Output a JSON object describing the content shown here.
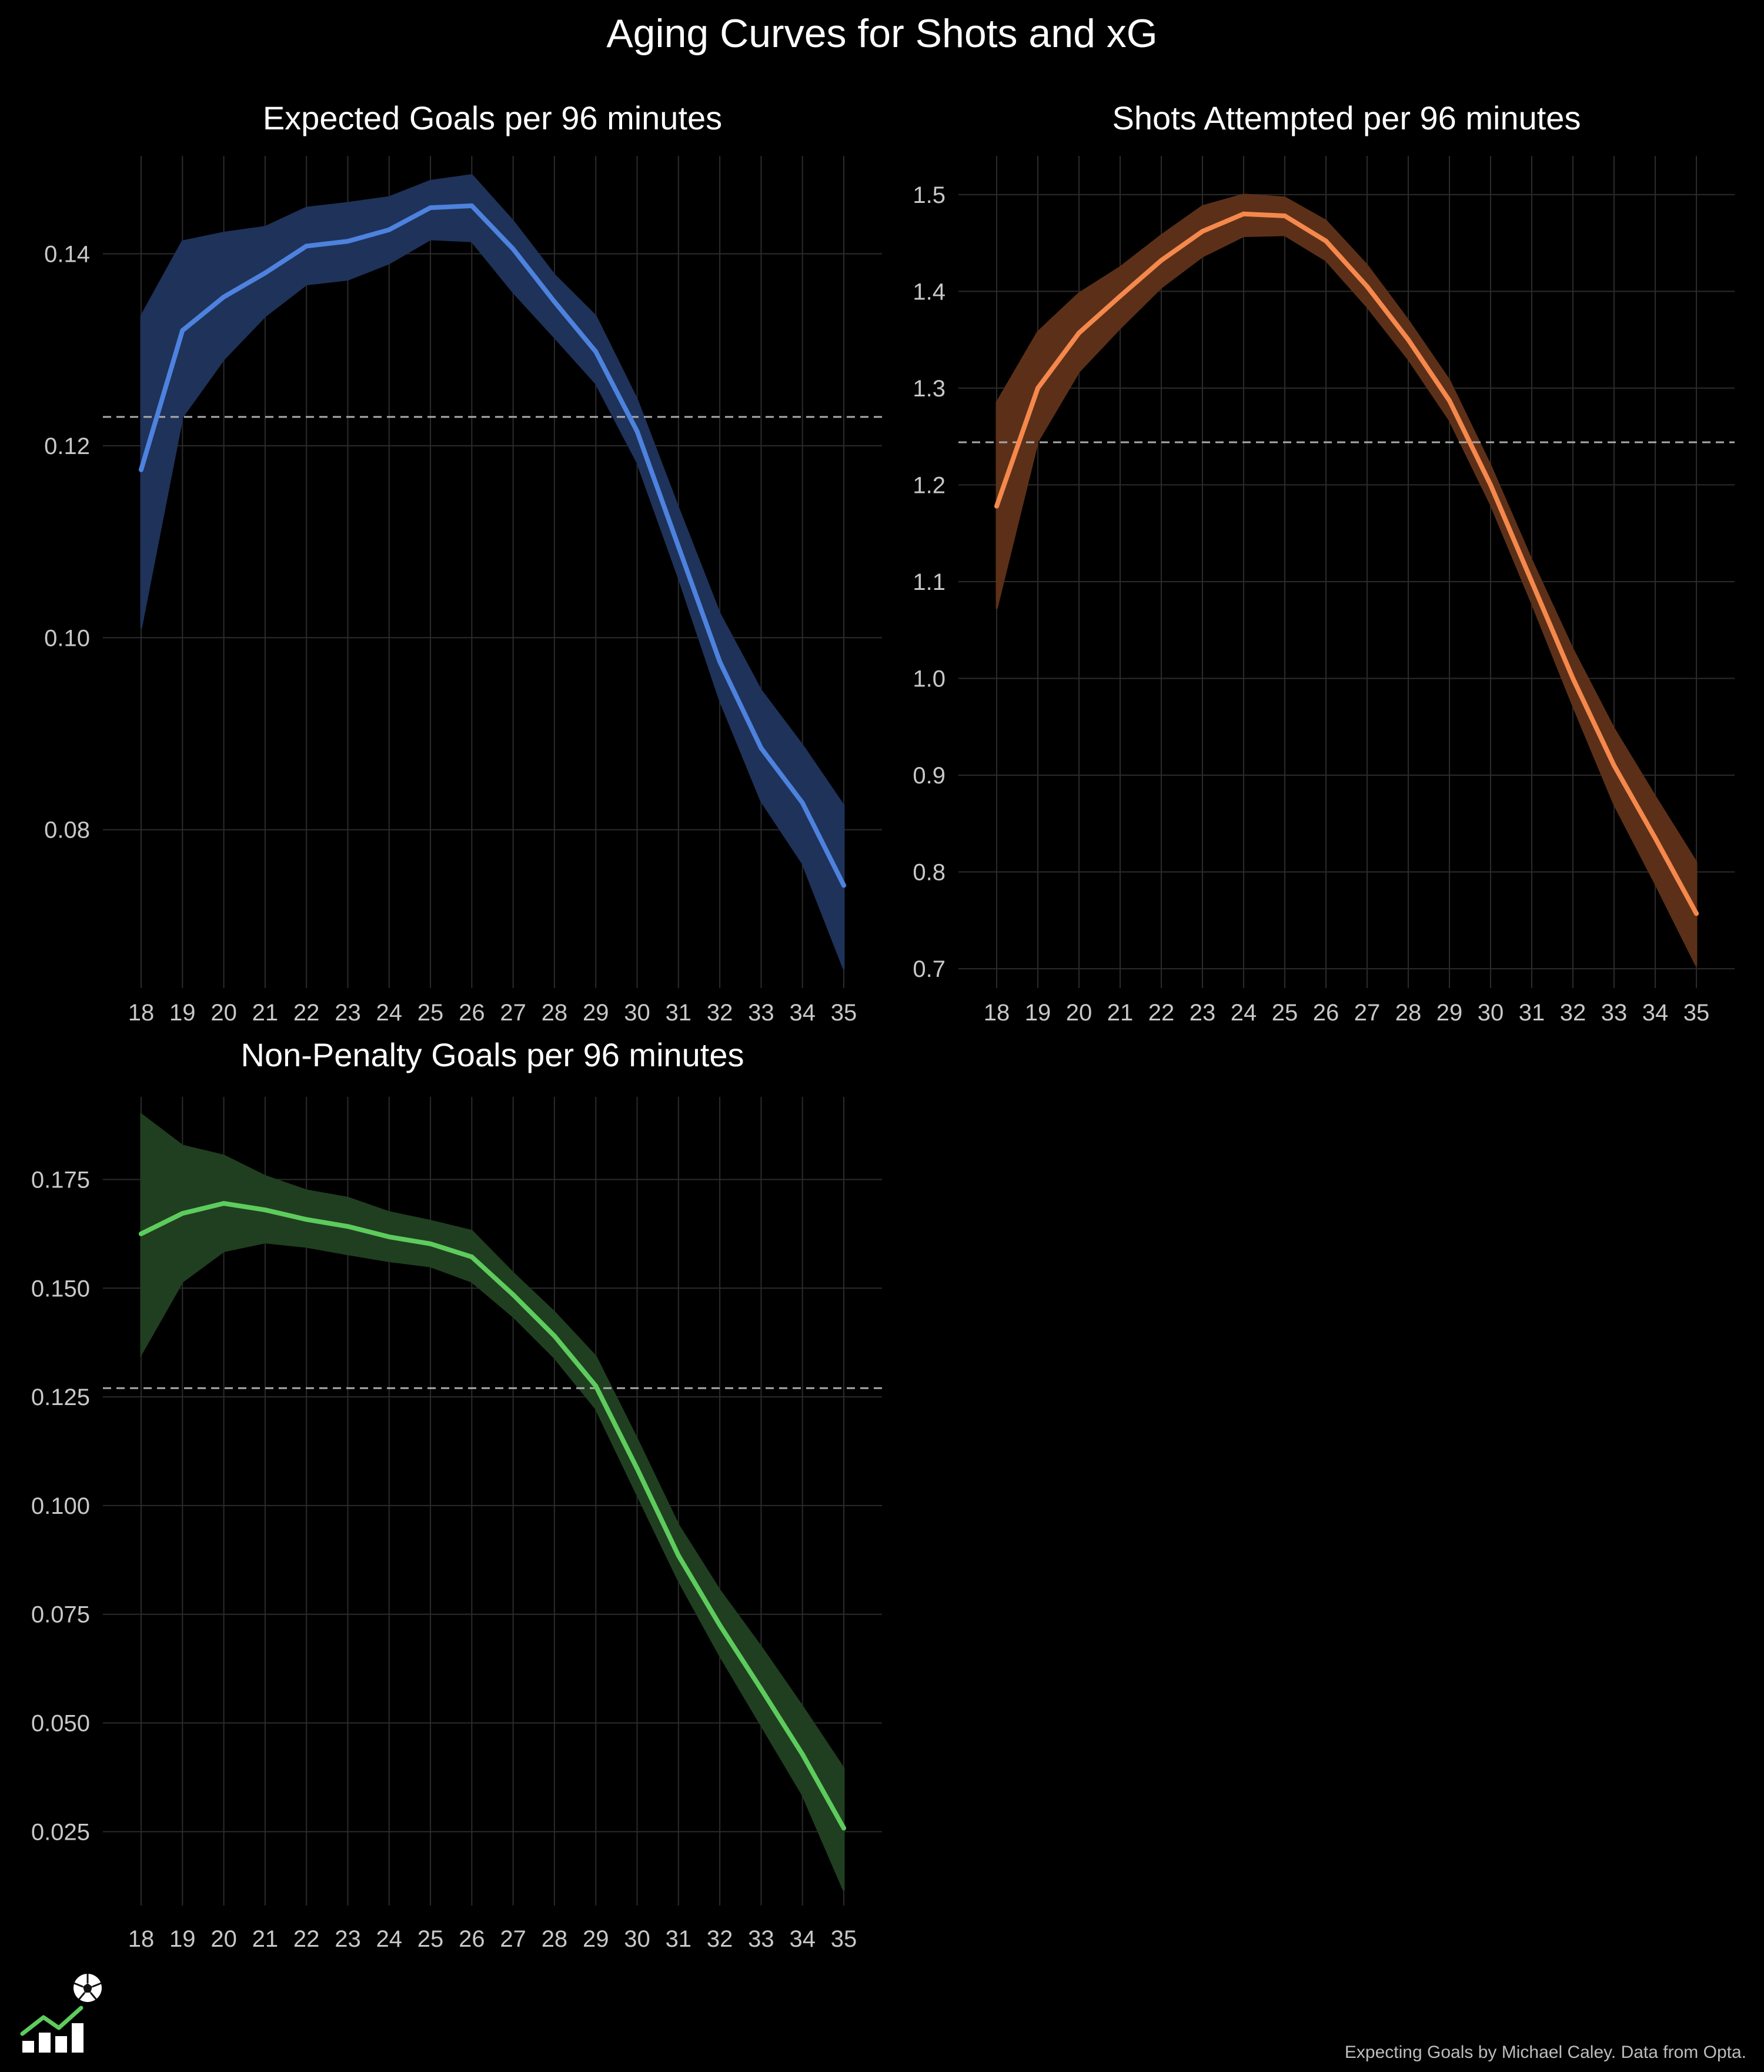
{
  "title": "Aging Curves for Shots and xG",
  "caption": "Expecting Goals by Michael Caley. Data from Opta.",
  "logo_icon": "chart-soccer-ball-icon",
  "chart_data": [
    {
      "type": "line",
      "title": "Expected Goals per 96 minutes",
      "xlabel": "",
      "ylabel": "",
      "x": [
        18,
        19,
        20,
        21,
        22,
        23,
        24,
        25,
        26,
        27,
        28,
        29,
        30,
        31,
        32,
        33,
        34,
        35
      ],
      "series": [
        {
          "values": [
            0.1175,
            0.132,
            0.1355,
            0.138,
            0.1408,
            0.1413,
            0.1425,
            0.1448,
            0.145,
            0.1405,
            0.135,
            0.1298,
            0.1215,
            0.1095,
            0.0975,
            0.0885,
            0.0828,
            0.0742
          ],
          "lower": [
            0.101,
            0.123,
            0.129,
            0.1335,
            0.1368,
            0.1373,
            0.139,
            0.1415,
            0.1413,
            0.136,
            0.1313,
            0.1265,
            0.1183,
            0.1063,
            0.0935,
            0.083,
            0.0765,
            0.0655
          ],
          "upper": [
            0.1335,
            0.1413,
            0.1422,
            0.1428,
            0.1448,
            0.1453,
            0.1459,
            0.1476,
            0.1482,
            0.1434,
            0.1378,
            0.1335,
            0.1248,
            0.1135,
            0.1025,
            0.0945,
            0.0888,
            0.0825
          ],
          "color": "#4d82de",
          "fill": "#1f3259"
        }
      ],
      "reference_line": 0.123,
      "ylim": [
        0.0635,
        0.1502
      ],
      "yticks": [
        0.08,
        0.1,
        0.12,
        0.14
      ],
      "ytick_labels": [
        "0.08",
        "0.10",
        "0.12",
        "0.14"
      ],
      "grid": true
    },
    {
      "type": "line",
      "title": "Shots Attempted per 96 minutes",
      "xlabel": "",
      "ylabel": "",
      "x": [
        18,
        19,
        20,
        21,
        22,
        23,
        24,
        25,
        26,
        27,
        28,
        29,
        30,
        31,
        32,
        33,
        34,
        35
      ],
      "series": [
        {
          "values": [
            1.178,
            1.3,
            1.357,
            1.395,
            1.432,
            1.462,
            1.48,
            1.478,
            1.452,
            1.405,
            1.35,
            1.287,
            1.2,
            1.1,
            1.0,
            0.91,
            0.835,
            0.757
          ],
          "lower": [
            1.072,
            1.245,
            1.317,
            1.362,
            1.404,
            1.436,
            1.457,
            1.458,
            1.432,
            1.384,
            1.33,
            1.267,
            1.18,
            1.078,
            0.972,
            0.87,
            0.788,
            0.703
          ],
          "upper": [
            1.285,
            1.358,
            1.398,
            1.425,
            1.458,
            1.488,
            1.5,
            1.497,
            1.473,
            1.427,
            1.37,
            1.308,
            1.22,
            1.122,
            1.03,
            0.948,
            0.878,
            0.81
          ],
          "color": "#f5884c",
          "fill": "#5c3018"
        }
      ],
      "reference_line": 1.244,
      "ylim": [
        0.68,
        1.54
      ],
      "yticks": [
        0.7,
        0.8,
        0.9,
        1.0,
        1.1,
        1.2,
        1.3,
        1.4,
        1.5
      ],
      "ytick_labels": [
        "0.7",
        "0.8",
        "0.9",
        "1.0",
        "1.1",
        "1.2",
        "1.3",
        "1.4",
        "1.5"
      ],
      "grid": true
    },
    {
      "type": "line",
      "title": "Non-Penalty Goals per 96 minutes",
      "xlabel": "",
      "ylabel": "",
      "x": [
        18,
        19,
        20,
        21,
        22,
        23,
        24,
        25,
        26,
        27,
        28,
        29,
        30,
        31,
        32,
        33,
        34,
        35
      ],
      "series": [
        {
          "values": [
            0.1625,
            0.1672,
            0.1695,
            0.168,
            0.1658,
            0.1642,
            0.1618,
            0.1602,
            0.1572,
            0.1485,
            0.139,
            0.1275,
            0.1085,
            0.0885,
            0.0725,
            0.0578,
            0.0428,
            0.0258
          ],
          "lower": [
            0.1348,
            0.1515,
            0.1585,
            0.1605,
            0.1595,
            0.1578,
            0.1562,
            0.155,
            0.1515,
            0.1435,
            0.134,
            0.1223,
            0.1025,
            0.0828,
            0.0655,
            0.0495,
            0.0335,
            0.0115
          ],
          "upper": [
            0.19,
            0.1828,
            0.1805,
            0.1758,
            0.1725,
            0.1708,
            0.1675,
            0.1655,
            0.1632,
            0.1535,
            0.1445,
            0.1343,
            0.1153,
            0.0955,
            0.0805,
            0.0675,
            0.0538,
            0.0395
          ],
          "color": "#5dcc5d",
          "fill": "#203f20"
        }
      ],
      "reference_line": 0.127,
      "ylim": [
        0.008,
        0.194
      ],
      "yticks": [
        0.025,
        0.05,
        0.075,
        0.1,
        0.125,
        0.15,
        0.175
      ],
      "ytick_labels": [
        "0.025",
        "0.050",
        "0.075",
        "0.100",
        "0.125",
        "0.150",
        "0.175"
      ],
      "grid": true
    }
  ]
}
